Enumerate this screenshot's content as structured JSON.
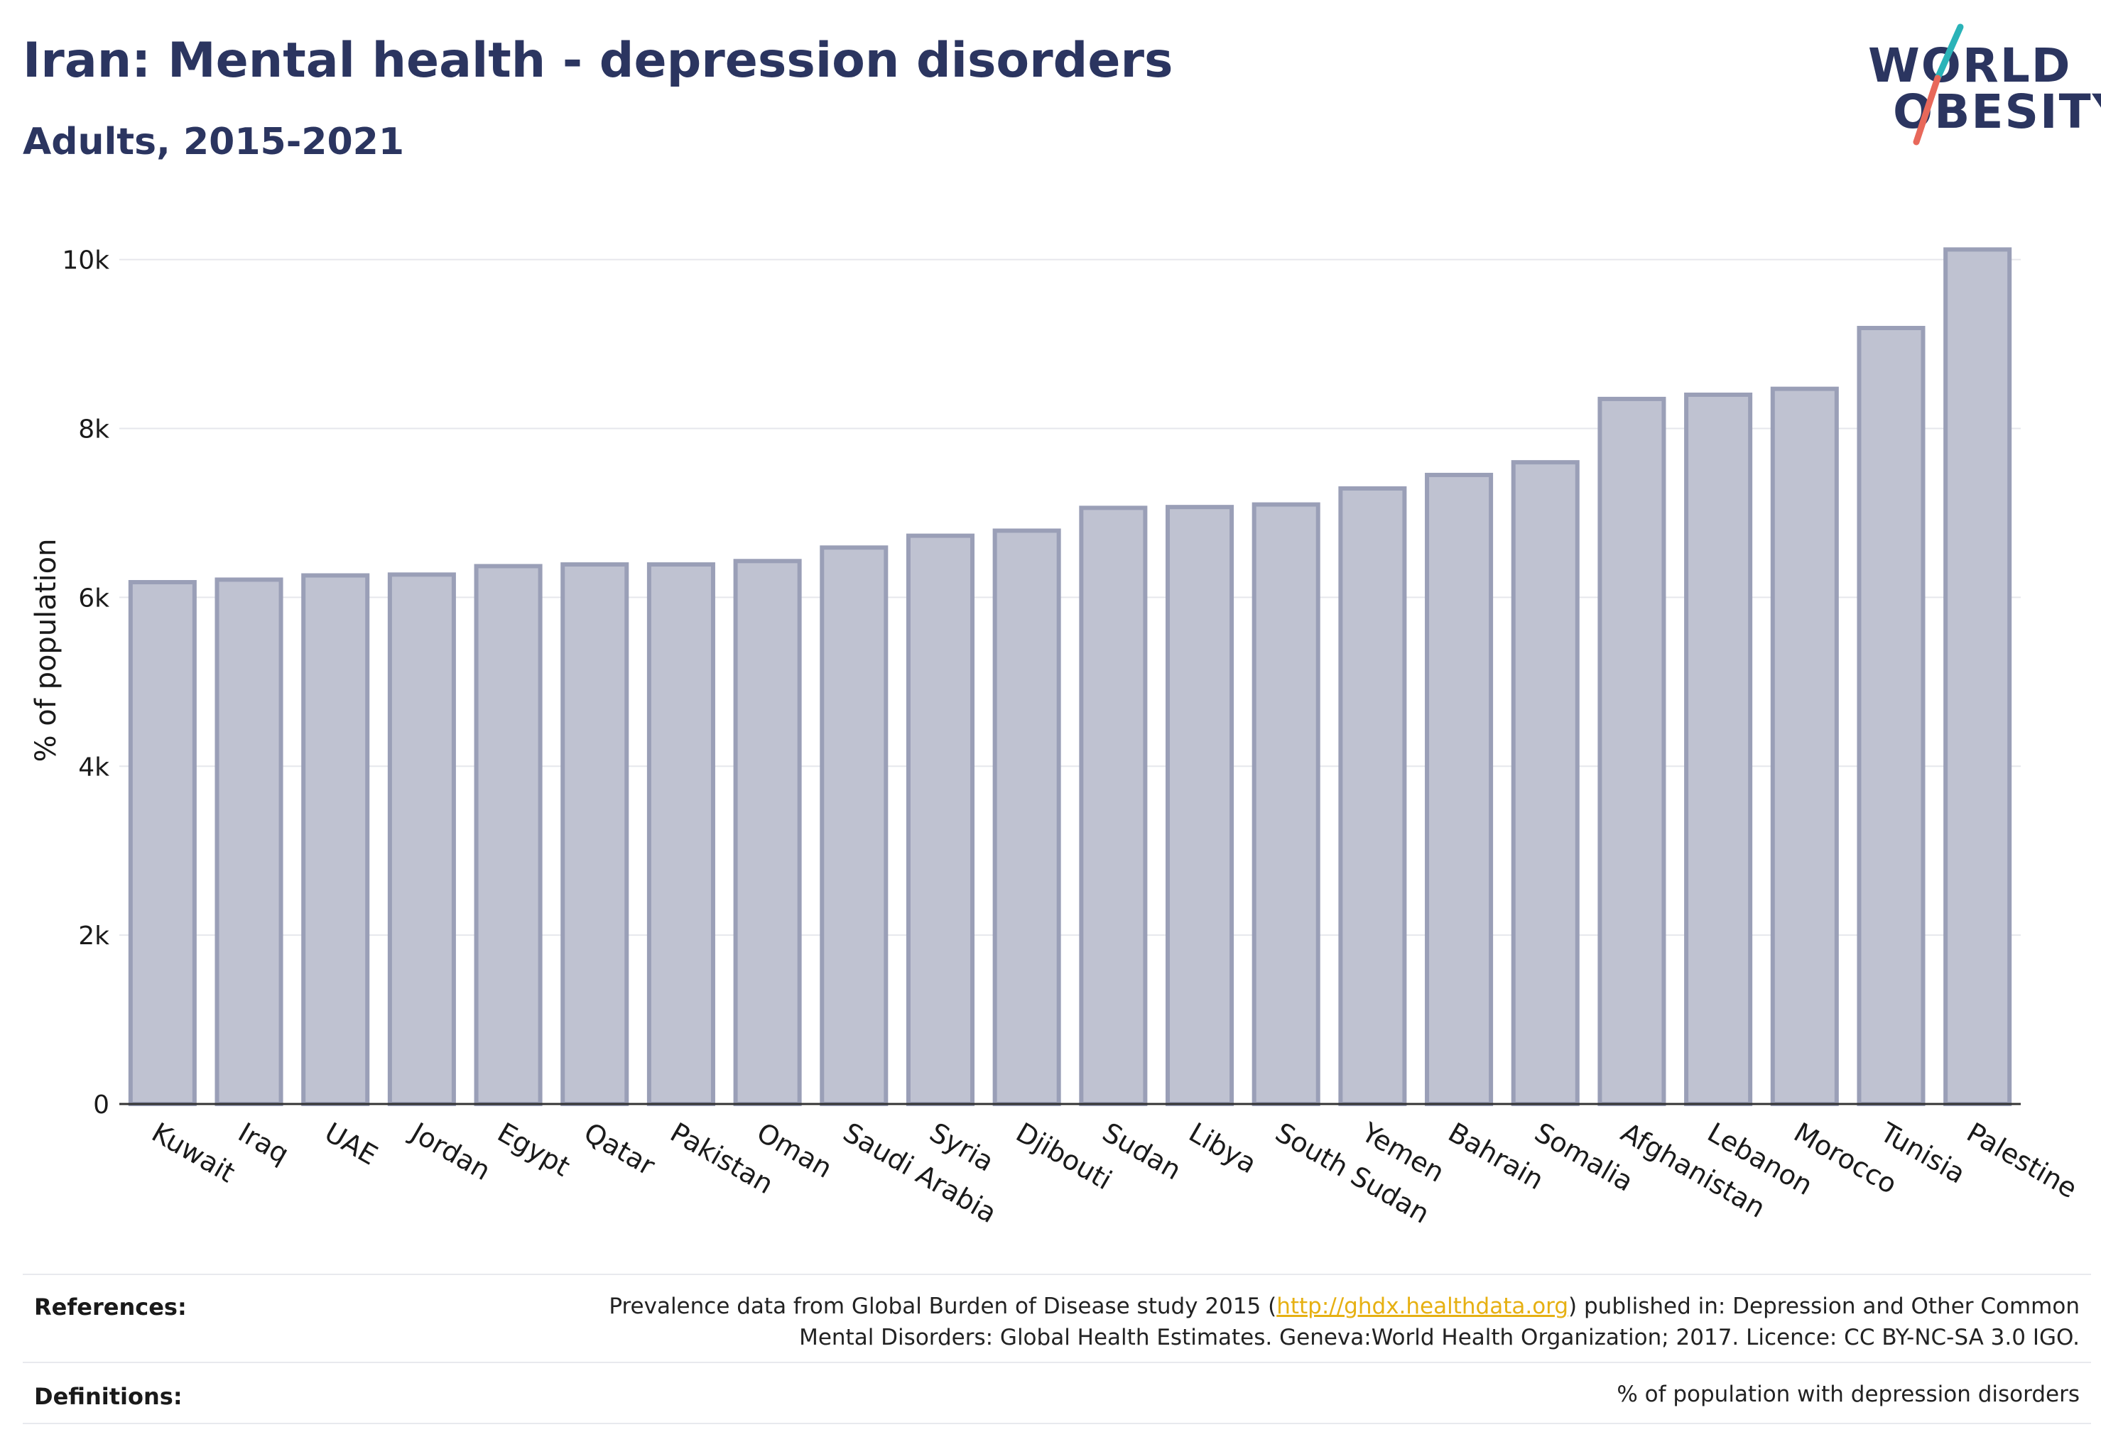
{
  "header": {
    "title": "Iran: Mental health - depression disorders",
    "subtitle": "Adults, 2015-2021"
  },
  "logo": {
    "line1": "WORLD",
    "line2": "OBESITY",
    "accent_colors": [
      "#2ab3b8",
      "#e8685a"
    ]
  },
  "chart_data": {
    "type": "bar",
    "ylabel": "% of population",
    "ylim": [
      0,
      10300
    ],
    "yticks": [
      0,
      2000,
      4000,
      6000,
      8000,
      10000
    ],
    "ytick_labels": [
      "0",
      "2k",
      "4k",
      "6k",
      "8k",
      "10k"
    ],
    "grid": true,
    "bar_color": "#bfc2d1",
    "bar_edge_color": "#9a9fb7",
    "categories": [
      "Kuwait",
      "Iraq",
      "UAE",
      "Jordan",
      "Egypt",
      "Qatar",
      "Pakistan",
      "Oman",
      "Saudi Arabia",
      "Syria",
      "Djibouti",
      "Sudan",
      "Libya",
      "South Sudan",
      "Yemen",
      "Bahrain",
      "Somalia",
      "Afghanistan",
      "Lebanon",
      "Morocco",
      "Tunisia",
      "Palestine"
    ],
    "values": [
      6180,
      6210,
      6260,
      6270,
      6370,
      6390,
      6390,
      6430,
      6590,
      6730,
      6790,
      7060,
      7070,
      7100,
      7290,
      7450,
      7600,
      8350,
      8400,
      8470,
      9190,
      10120
    ]
  },
  "footer": {
    "references_label": "References:",
    "references_before": "Prevalence data from Global Burden of Disease study 2015 (",
    "references_link": "http://ghdx.healthdata.org",
    "references_after_line1": ") published in: Depression and Other Common",
    "references_line2": "Mental Disorders: Global Health Estimates. Geneva:World Health Organization; 2017. Licence: CC BY-NC-SA 3.0 IGO.",
    "definitions_label": "Definitions:",
    "definitions_text": "% of population with depression disorders"
  }
}
